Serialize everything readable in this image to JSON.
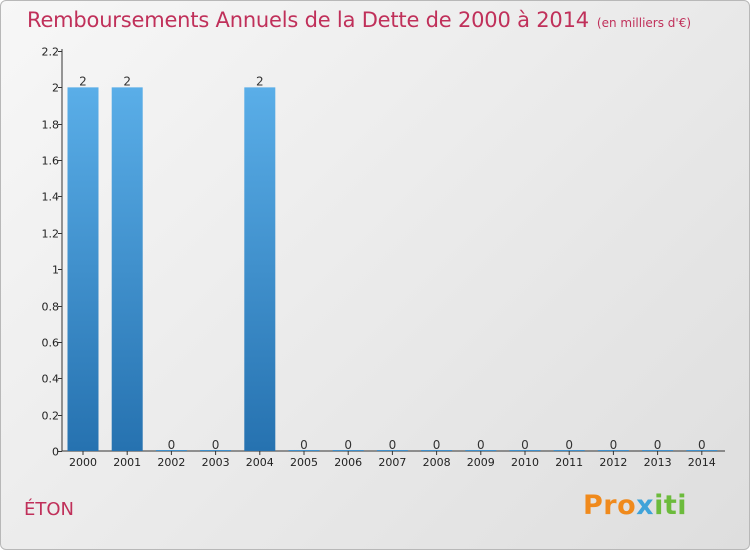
{
  "chart_data": {
    "type": "bar",
    "title": "Remboursements Annuels de la Dette de 2000 à 2014",
    "subtitle": "(en milliers d'€)",
    "categories": [
      "2000",
      "2001",
      "2002",
      "2003",
      "2004",
      "2005",
      "2006",
      "2007",
      "2008",
      "2009",
      "2010",
      "2011",
      "2012",
      "2013",
      "2014"
    ],
    "values": [
      2,
      2,
      0,
      0,
      2,
      0,
      0,
      0,
      0,
      0,
      0,
      0,
      0,
      0,
      0
    ],
    "labels": [
      "2",
      "2",
      "0",
      "0",
      "2",
      "0",
      "0",
      "0",
      "0",
      "0",
      "0",
      "0",
      "0",
      "0",
      "0"
    ],
    "ylim": [
      0,
      2.2
    ],
    "yticks": [
      0,
      0.2,
      0.4,
      0.6,
      0.8,
      1,
      1.2,
      1.4,
      1.6,
      1.8,
      2,
      2.2
    ],
    "ytick_labels": [
      "0",
      "0.2",
      "0.4",
      "0.6",
      "0.8",
      "1",
      "1.2",
      "1.4",
      "1.6",
      "1.8",
      "2",
      "2.2"
    ],
    "bar_color_top": "#5aaee8",
    "bar_color_bottom": "#2672b0",
    "xlabel": "",
    "ylabel": ""
  },
  "commune": "ÉTON",
  "logo": {
    "part1": "Pro",
    "part2": "x",
    "part3": "iti"
  },
  "colors": {
    "title": "#c0305a",
    "axis": "#333333"
  }
}
